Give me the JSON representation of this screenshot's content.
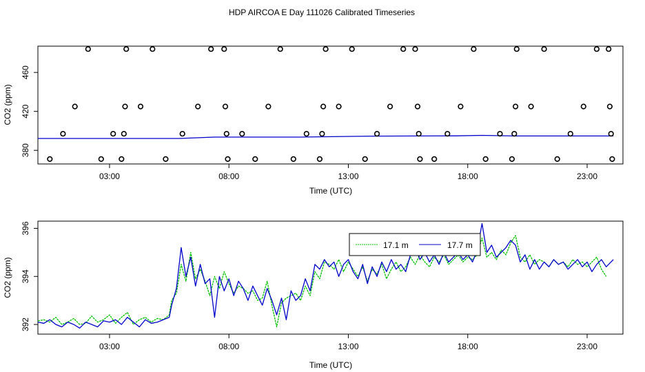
{
  "title": "HDP AIRCOA E  Day 111026  Calibrated Timeseries",
  "colors": {
    "green": "#00c000",
    "blue": "#0000cc",
    "axis": "#000000"
  },
  "chart_data": [
    {
      "type": "scatter",
      "xlabel": "Time (UTC)",
      "ylabel": "CO2 (ppm)",
      "xlim": [
        0,
        24.5
      ],
      "ylim": [
        366,
        487
      ],
      "xticks": [
        3,
        8,
        13,
        18,
        23
      ],
      "xtick_labels": [
        "03:00",
        "08:00",
        "13:00",
        "18:00",
        "23:00"
      ],
      "yticks": [
        380,
        420,
        460
      ],
      "ytick_labels": [
        "380",
        "420",
        "460"
      ],
      "calibration_points": {
        "name": "",
        "x": [
          0.5,
          1.05,
          1.55,
          2.1,
          2.65,
          3.15,
          3.5,
          3.6,
          3.65,
          3.7,
          4.3,
          4.8,
          5.35,
          6.05,
          6.7,
          7.25,
          7.8,
          7.85,
          7.9,
          7.95,
          8.55,
          9.1,
          9.65,
          10.15,
          10.7,
          11.25,
          11.8,
          11.9,
          11.95,
          12.05,
          12.6,
          13.15,
          13.7,
          14.2,
          14.75,
          15.3,
          15.8,
          15.9,
          15.95,
          16.0,
          16.6,
          17.15,
          17.7,
          18.25,
          18.75,
          19.35,
          19.85,
          19.95,
          20.0,
          20.05,
          20.65,
          21.2,
          21.75,
          22.3,
          22.85,
          23.4,
          23.9,
          23.95,
          24.0,
          24.05
        ],
        "y": [
          371,
          397,
          425,
          484,
          371,
          397,
          371,
          397,
          425,
          484,
          425,
          484,
          371,
          397,
          425,
          484,
          484,
          425,
          397,
          371,
          397,
          371,
          425,
          484,
          371,
          397,
          371,
          397,
          425,
          484,
          425,
          484,
          371,
          397,
          425,
          484,
          484,
          425,
          397,
          371,
          371,
          397,
          425,
          484,
          371,
          397,
          371,
          397,
          425,
          484,
          425,
          484,
          371,
          397,
          425,
          484,
          484,
          425,
          397,
          371
        ]
      },
      "series": [
        {
          "name": "",
          "x": [
            0,
            5.9,
            7.4,
            11,
            14,
            17.5,
            18.6,
            20,
            24.1
          ],
          "y": [
            392.2,
            392.2,
            393.6,
            393.6,
            394.6,
            394.9,
            395.4,
            394.7,
            394.7
          ]
        }
      ]
    },
    {
      "type": "line",
      "xlabel": "Time (UTC)",
      "ylabel": "CO2 (ppm)",
      "xlim": [
        0,
        24.5
      ],
      "ylim": [
        391.6,
        396.3
      ],
      "xticks": [
        3,
        8,
        13,
        18,
        23
      ],
      "xtick_labels": [
        "03:00",
        "08:00",
        "13:00",
        "18:00",
        "23:00"
      ],
      "yticks": [
        392,
        394,
        396
      ],
      "ytick_labels": [
        "392",
        "394",
        "396"
      ],
      "legend": {
        "position": "top-right"
      },
      "series": [
        {
          "name": "17.1 m",
          "x": [
            0,
            0.25,
            0.5,
            0.75,
            1.0,
            1.25,
            1.5,
            1.75,
            2.0,
            2.25,
            2.5,
            2.75,
            3.0,
            3.25,
            3.5,
            3.75,
            4.0,
            4.25,
            4.5,
            4.75,
            5.0,
            5.25,
            5.5,
            5.6,
            5.8,
            6.0,
            6.2,
            6.4,
            6.6,
            6.8,
            7.0,
            7.2,
            7.4,
            7.6,
            7.8,
            8.0,
            8.2,
            8.4,
            8.6,
            8.8,
            9.0,
            9.2,
            9.4,
            9.6,
            9.8,
            10.0,
            10.2,
            10.4,
            10.6,
            10.8,
            11.0,
            11.2,
            11.4,
            11.6,
            11.8,
            12.0,
            12.2,
            12.4,
            12.6,
            12.8,
            13.0,
            13.2,
            13.4,
            13.6,
            13.8,
            14.0,
            14.2,
            14.4,
            14.6,
            14.8,
            15.0,
            15.2,
            15.4,
            15.6,
            15.8,
            16.0,
            16.2,
            16.4,
            16.6,
            16.8,
            17.0,
            17.2,
            17.4,
            17.6,
            17.8,
            18.0,
            18.2,
            18.4,
            18.6,
            18.8,
            19.0,
            19.2,
            19.4,
            19.6,
            19.8,
            20.0,
            20.2,
            20.4,
            20.6,
            20.8,
            21.0,
            21.2,
            21.4,
            21.6,
            21.8,
            22.0,
            22.2,
            22.4,
            22.6,
            22.8,
            23.0,
            23.2,
            23.4,
            23.6,
            23.8
          ],
          "y": [
            392.15,
            392.2,
            392.1,
            392.3,
            392.0,
            392.1,
            392.25,
            392.0,
            392.05,
            392.35,
            392.1,
            392.2,
            392.4,
            392.05,
            392.3,
            392.5,
            392.0,
            392.2,
            392.3,
            392.1,
            392.25,
            392.2,
            392.4,
            393.0,
            393.3,
            394.5,
            393.8,
            395.0,
            393.9,
            394.3,
            393.8,
            393.2,
            394.0,
            393.5,
            394.2,
            393.7,
            393.3,
            393.6,
            393.5,
            393.3,
            393.4,
            393.0,
            393.1,
            393.8,
            392.8,
            391.9,
            392.9,
            393.1,
            393.2,
            393.3,
            393.0,
            393.6,
            393.2,
            394.2,
            393.9,
            394.6,
            394.5,
            394.3,
            394.7,
            394.2,
            394.6,
            394.3,
            394.0,
            394.4,
            393.8,
            394.3,
            394.1,
            394.5,
            393.9,
            394.3,
            394.6,
            394.2,
            394.4,
            394.8,
            394.5,
            394.9,
            394.6,
            394.4,
            394.8,
            394.6,
            394.9,
            394.5,
            394.7,
            394.9,
            394.6,
            394.8,
            394.7,
            394.9,
            395.6,
            394.8,
            395.0,
            394.7,
            395.1,
            394.9,
            395.4,
            395.7,
            394.8,
            394.6,
            394.9,
            394.5,
            394.7,
            394.6,
            394.4,
            394.7,
            394.5,
            394.6,
            394.4,
            394.7,
            394.5,
            394.6,
            394.4,
            394.6,
            394.8,
            394.3,
            394.0
          ]
        },
        {
          "name": "17.7 m",
          "x": [
            0,
            0.25,
            0.5,
            0.75,
            1.0,
            1.25,
            1.5,
            1.75,
            2.0,
            2.25,
            2.5,
            2.75,
            3.0,
            3.25,
            3.5,
            3.75,
            4.0,
            4.25,
            4.5,
            4.75,
            5.0,
            5.25,
            5.5,
            5.6,
            5.8,
            6.0,
            6.2,
            6.4,
            6.6,
            6.8,
            7.0,
            7.2,
            7.4,
            7.6,
            7.8,
            8.0,
            8.2,
            8.4,
            8.6,
            8.8,
            9.0,
            9.2,
            9.4,
            9.6,
            9.8,
            10.0,
            10.2,
            10.4,
            10.6,
            10.8,
            11.0,
            11.2,
            11.4,
            11.6,
            11.8,
            12.0,
            12.2,
            12.4,
            12.6,
            12.8,
            13.0,
            13.2,
            13.4,
            13.6,
            13.8,
            14.0,
            14.2,
            14.4,
            14.6,
            14.8,
            15.0,
            15.2,
            15.4,
            15.6,
            15.8,
            16.0,
            16.2,
            16.4,
            16.6,
            16.8,
            17.0,
            17.2,
            17.4,
            17.6,
            17.8,
            18.0,
            18.2,
            18.4,
            18.6,
            18.8,
            19.0,
            19.2,
            19.4,
            19.6,
            19.8,
            20.0,
            20.2,
            20.4,
            20.6,
            20.8,
            21.0,
            21.2,
            21.4,
            21.6,
            21.8,
            22.0,
            22.2,
            22.4,
            22.6,
            22.8,
            23.0,
            23.2,
            23.4,
            23.6,
            23.8,
            24.1
          ],
          "y": [
            392.1,
            392.05,
            392.2,
            392.0,
            391.9,
            392.1,
            392.0,
            391.85,
            392.1,
            392.0,
            391.9,
            392.15,
            392.1,
            392.2,
            392.0,
            392.3,
            392.1,
            391.9,
            392.2,
            392.05,
            392.1,
            392.2,
            392.3,
            392.8,
            393.5,
            395.2,
            394.0,
            394.8,
            393.6,
            394.5,
            393.7,
            393.9,
            392.3,
            394.0,
            393.4,
            393.9,
            393.2,
            393.8,
            393.5,
            393.0,
            393.6,
            393.2,
            392.8,
            393.5,
            393.0,
            392.4,
            393.1,
            392.2,
            393.4,
            393.0,
            393.2,
            393.9,
            393.4,
            394.5,
            394.3,
            394.7,
            394.4,
            394.6,
            394.0,
            394.5,
            394.7,
            394.2,
            393.9,
            394.5,
            393.7,
            394.4,
            394.0,
            394.6,
            394.2,
            394.7,
            394.3,
            394.5,
            394.2,
            394.9,
            395.2,
            394.7,
            395.0,
            394.6,
            394.9,
            394.5,
            395.0,
            394.6,
            394.8,
            395.0,
            394.7,
            394.9,
            394.6,
            395.1,
            396.2,
            395.0,
            395.3,
            394.8,
            395.0,
            395.2,
            395.5,
            395.3,
            394.6,
            394.9,
            394.3,
            394.7,
            394.3,
            394.6,
            394.4,
            394.7,
            394.5,
            394.6,
            394.3,
            394.5,
            394.7,
            394.4,
            394.6,
            394.2,
            394.5,
            394.7,
            394.4,
            394.7
          ]
        }
      ]
    }
  ]
}
